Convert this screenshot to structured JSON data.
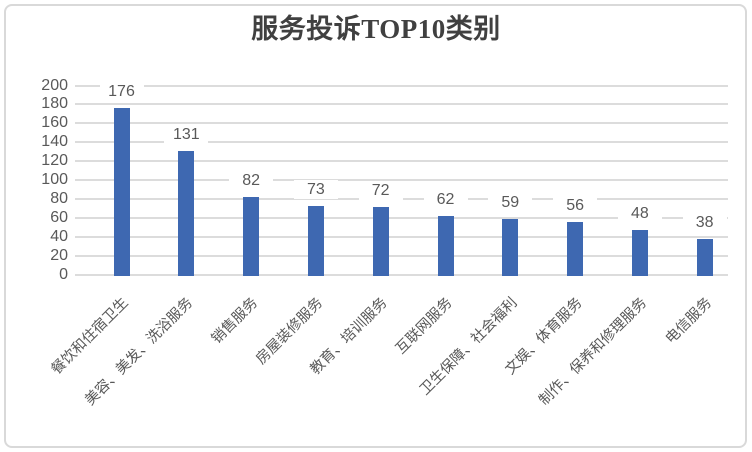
{
  "chart": {
    "title": "服务投诉TOP10类别"
  },
  "chart_data": {
    "type": "bar",
    "title": "服务投诉TOP10类别",
    "categories": [
      "餐饮和住宿卫生",
      "美容、美发、洗浴服务",
      "销售服务",
      "房屋装修服务",
      "教育、培训服务",
      "互联网服务",
      "卫生保障、社会福利",
      "文娱、体育服务",
      "制作、保养和修理服务",
      "电信服务"
    ],
    "values": [
      176,
      131,
      82,
      73,
      72,
      62,
      59,
      56,
      48,
      38
    ],
    "yticks": [
      0,
      20,
      40,
      60,
      80,
      100,
      120,
      140,
      160,
      180,
      200
    ],
    "xlabel": "",
    "ylabel": "",
    "ylim": [
      0,
      200
    ],
    "grid": true,
    "legend": false,
    "colors": {
      "bar": "#3E68B1",
      "gridline": "#DCDCDC",
      "axis_labels": "#595959",
      "title": "#404040",
      "frame_border": "#D9D9D9",
      "background": "#FFFFFF"
    }
  }
}
